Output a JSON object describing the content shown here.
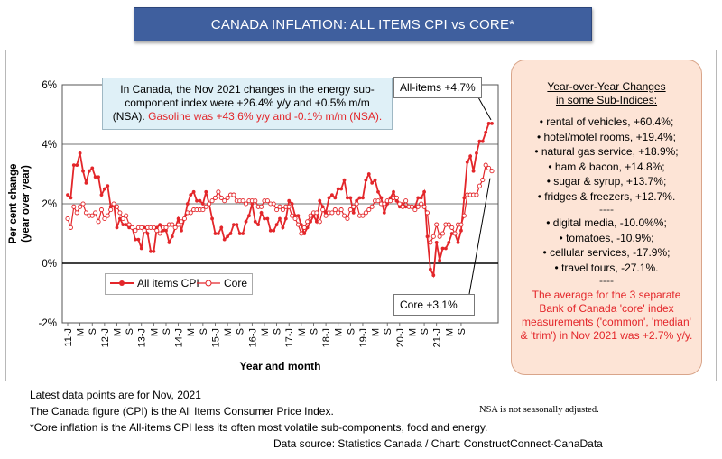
{
  "title": "CANADA INFLATION: ALL ITEMS CPI vs CORE*",
  "annotation": {
    "text": "In Canada, the Nov 2021 changes in the energy sub-component index were +26.4% y/y and +0.5% m/m (NSA).",
    "red_text": "Gasoline was +43.6% y/y and -0.1% m/m (NSA)."
  },
  "callouts": {
    "all_items": "All-items +4.7%",
    "core": "Core +3.1%"
  },
  "legend": {
    "all_items": "All items CPI",
    "core": "Core"
  },
  "sidebar": {
    "heading_line1": "Year-over-Year Changes",
    "heading_line2": "in some Sub-Indices:",
    "increases": [
      "• rental of vehicles, +60.4%;",
      "• hotel/motel rooms, +19.4%;",
      "• natural gas service, +18.9%;",
      "• ham & bacon, +14.8%;",
      "• sugar & syrup, +13.7%;",
      "• fridges & freezers, +12.7%."
    ],
    "separator": "----",
    "decreases": [
      "• digital media, -10.0%%;",
      "• tomatoes, -10.9%;",
      "• cellular services, -17.9%;",
      "• travel tours, -27.1%."
    ],
    "note": "The average for the 3 separate Bank of Canada 'core' index measurements ('common', 'median' & 'trim') in Nov 2021 was +2.7% y/y."
  },
  "footer": {
    "latest": "Latest data points are for Nov, 2021",
    "cpi_note": "The Canada figure (CPI) is the All Items Consumer Price Index.",
    "nsa": "NSA is not seasonally adjusted.",
    "core_note": "*Core inflation is the All-items CPI less its often most volatile sub-components, food and energy.",
    "source": "Data source: Statistics Canada / Chart: ConstructConnect-CanaData"
  },
  "colors": {
    "banner": "#3f5f9e",
    "series": "#e3262a",
    "sidebar_bg": "#fde4d6",
    "annotation_bg": "#dff0f7"
  },
  "chart_data": {
    "type": "line",
    "title": "CANADA INFLATION: ALL ITEMS CPI vs CORE*",
    "xlabel": "Year and month",
    "ylabel": "Per cent change (year over year)",
    "ylim": [
      -2,
      6
    ],
    "yticks": [
      "6%",
      "4%",
      "2%",
      "0%",
      "-2%"
    ],
    "x_start": "2011-01",
    "x_end": "2021-11",
    "xticks": [
      "11-J",
      "M",
      "S",
      "12-J",
      "M",
      "S",
      "13-J",
      "M",
      "S",
      "14-J",
      "M",
      "S",
      "15-J",
      "M",
      "S",
      "16-J",
      "M",
      "S",
      "17-J",
      "M",
      "S",
      "18-J",
      "M",
      "S",
      "19-J",
      "M",
      "S",
      "20-J",
      "M",
      "S",
      "21-J",
      "M",
      "S"
    ],
    "grid": "horizontal",
    "legend": "bottom-left",
    "series": [
      {
        "name": "All items CPI",
        "values": [
          2.3,
          2.2,
          3.3,
          3.3,
          3.7,
          3.1,
          2.7,
          3.1,
          3.2,
          2.9,
          2.9,
          2.3,
          2.5,
          2.6,
          1.9,
          2.0,
          1.2,
          1.5,
          1.3,
          1.3,
          1.2,
          1.2,
          0.8,
          0.8,
          0.5,
          1.2,
          1.0,
          0.4,
          0.4,
          1.2,
          1.3,
          1.1,
          1.1,
          0.7,
          0.9,
          1.2,
          1.5,
          1.1,
          1.5,
          2.0,
          2.3,
          2.4,
          2.1,
          2.1,
          2.0,
          2.4,
          2.0,
          1.5,
          1.0,
          1.0,
          1.2,
          0.8,
          0.9,
          1.0,
          1.3,
          1.3,
          1.0,
          1.0,
          1.4,
          1.6,
          2.0,
          1.4,
          1.3,
          1.7,
          1.5,
          1.5,
          1.1,
          1.1,
          1.3,
          1.5,
          1.2,
          1.5,
          2.1,
          2.0,
          1.6,
          1.6,
          1.3,
          1.0,
          1.2,
          1.4,
          1.6,
          1.4,
          2.1,
          1.9,
          1.7,
          2.2,
          2.3,
          2.2,
          2.5,
          2.5,
          2.8,
          2.2,
          2.2,
          1.7,
          2.1,
          2.2,
          2.2,
          2.8,
          3.0,
          2.7,
          2.8,
          2.4,
          2.2,
          1.7,
          2.0,
          2.2,
          2.4,
          2.1,
          1.9,
          2.0,
          1.9,
          1.9,
          1.9,
          1.9,
          2.2,
          2.2,
          2.4,
          0.9,
          -0.2,
          -0.4,
          0.7,
          0.1,
          0.5,
          0.5,
          0.7,
          1.0,
          1.0,
          0.7,
          1.1,
          2.2,
          3.4,
          3.6,
          3.1,
          3.7,
          4.1,
          4.1,
          4.4,
          4.7,
          4.7
        ]
      },
      {
        "name": "Core",
        "values": [
          1.5,
          1.2,
          1.9,
          1.7,
          1.9,
          2.0,
          1.7,
          1.6,
          1.6,
          1.7,
          1.4,
          1.8,
          1.5,
          1.6,
          1.8,
          2.0,
          1.9,
          1.7,
          1.5,
          1.6,
          1.3,
          1.2,
          1.1,
          1.2,
          1.2,
          1.1,
          1.2,
          1.2,
          1.2,
          1.1,
          1.0,
          1.2,
          1.2,
          1.3,
          1.3,
          1.2,
          1.3,
          1.4,
          1.5,
          1.7,
          1.7,
          1.8,
          1.8,
          1.8,
          1.8,
          1.9,
          2.0,
          2.1,
          2.2,
          2.4,
          2.2,
          2.1,
          2.2,
          2.3,
          2.3,
          2.1,
          2.1,
          2.1,
          2.0,
          2.1,
          2.1,
          2.1,
          1.9,
          1.9,
          2.1,
          2.1,
          2.0,
          2.0,
          1.8,
          1.9,
          1.8,
          1.9,
          1.9,
          1.6,
          1.5,
          1.3,
          1.0,
          1.2,
          1.4,
          1.6,
          1.7,
          1.7,
          1.4,
          1.8,
          1.6,
          1.7,
          1.7,
          1.8,
          1.7,
          1.8,
          1.6,
          1.5,
          1.8,
          1.9,
          2.0,
          1.6,
          1.6,
          1.7,
          1.8,
          1.9,
          2.1,
          2.1,
          2.0,
          2.0,
          2.1,
          2.1,
          2.2,
          2.2,
          2.0,
          1.9,
          2.1,
          1.9,
          1.9,
          1.8,
          1.9,
          2.0,
          1.9,
          1.7,
          0.7,
          0.9,
          1.3,
          0.9,
          1.0,
          1.3,
          1.3,
          1.2,
          1.0,
          1.3,
          1.3,
          1.6,
          2.3,
          2.3,
          2.3,
          2.3,
          2.6,
          2.8,
          3.3,
          3.2,
          3.1
        ]
      }
    ]
  }
}
